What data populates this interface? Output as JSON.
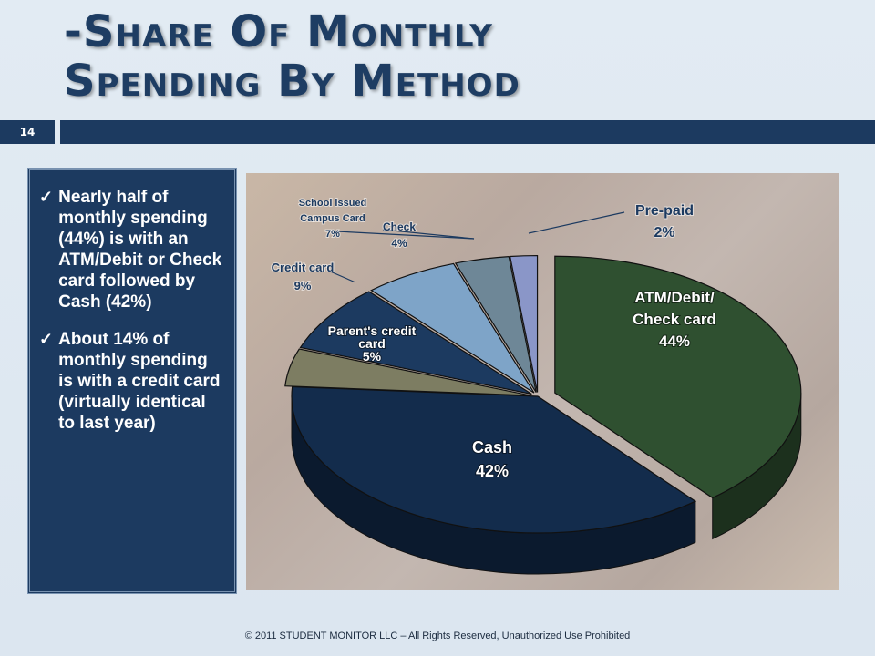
{
  "slide": {
    "title_line1": "-Share Of Monthly",
    "title_line2": "Spending By Method",
    "number": "14",
    "footer": "© 2011 STUDENT MONITOR LLC – All Rights Reserved, Unauthorized Use Prohibited"
  },
  "bullets": [
    {
      "icon": "check-icon",
      "text": "Nearly half of monthly spending (44%) is with an ATM/Debit or Check card followed by Cash (42%)"
    },
    {
      "icon": "check-icon",
      "text": "About 14% of monthly spending is with a credit card (virtually identical to last year)"
    }
  ],
  "colors": {
    "title": "#1e3d63",
    "bar": "#1c3a60",
    "atm": "#2f5030",
    "cash": "#132c4c",
    "parent": "#7d7d62",
    "credit": "#1c3a60",
    "campus": "#7ea4c8",
    "check": "#6e8797",
    "prepaid": "#8a96c8"
  },
  "chart_data": {
    "type": "pie",
    "title": "",
    "slices": [
      {
        "label_lines": [
          "ATM/Debit/",
          "Check card"
        ],
        "value_label": "44%",
        "value": 44
      },
      {
        "label_lines": [
          "Cash"
        ],
        "value_label": "42%",
        "value": 42
      },
      {
        "label_lines": [
          "Parent's credit",
          "card"
        ],
        "value_label": "5%",
        "value": 5
      },
      {
        "label_lines": [
          "Credit card"
        ],
        "value_label": "9%",
        "value": 9
      },
      {
        "label_lines": [
          "School issued",
          "Campus Card"
        ],
        "value_label": "7%",
        "value": 7
      },
      {
        "label_lines": [
          "Check"
        ],
        "value_label": "4%",
        "value": 4
      },
      {
        "label_lines": [
          "Pre-paid"
        ],
        "value_label": "2%",
        "value": 2
      }
    ]
  }
}
